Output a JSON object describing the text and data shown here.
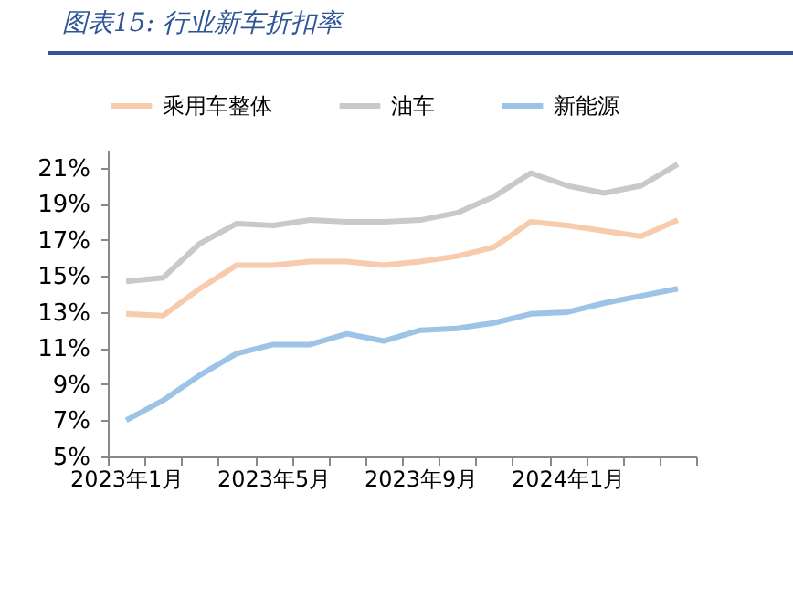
{
  "chart_data": {
    "type": "line",
    "title": "图表15:  行业新车折扣率",
    "categories": [
      "2023年1月",
      null,
      null,
      null,
      "2023年5月",
      null,
      null,
      null,
      "2023年9月",
      null,
      null,
      null,
      "2024年1月",
      null,
      null,
      null
    ],
    "series": [
      {
        "name": "乘用车整体",
        "color": "#f8cbad",
        "values": [
          12.9,
          12.8,
          14.3,
          15.6,
          15.6,
          15.8,
          15.8,
          15.6,
          15.8,
          16.1,
          16.6,
          18.0,
          17.8,
          17.5,
          17.2,
          18.1
        ]
      },
      {
        "name": "油车",
        "color": "#c9c9c9",
        "values": [
          14.7,
          14.9,
          16.8,
          17.9,
          17.8,
          18.1,
          18.0,
          18.0,
          18.1,
          18.5,
          19.4,
          20.7,
          20.0,
          19.6,
          20.0,
          21.2
        ]
      },
      {
        "name": "新能源",
        "color": "#9dc3e6",
        "values": [
          7.0,
          8.1,
          9.5,
          10.7,
          11.2,
          11.2,
          11.8,
          11.4,
          12.0,
          12.1,
          12.4,
          12.9,
          13.0,
          13.5,
          13.9,
          14.3
        ]
      }
    ],
    "ylim": [
      5,
      22
    ],
    "yticks": [
      {
        "value": 5,
        "label": "5%"
      },
      {
        "value": 7,
        "label": "7%"
      },
      {
        "value": 9,
        "label": "9%"
      },
      {
        "value": 11,
        "label": "11%"
      },
      {
        "value": 13,
        "label": "13%"
      },
      {
        "value": 15,
        "label": "15%"
      },
      {
        "value": 17,
        "label": "17%"
      },
      {
        "value": 19,
        "label": "19%"
      },
      {
        "value": 21,
        "label": "21%"
      }
    ],
    "legend": "top",
    "grid": false
  }
}
